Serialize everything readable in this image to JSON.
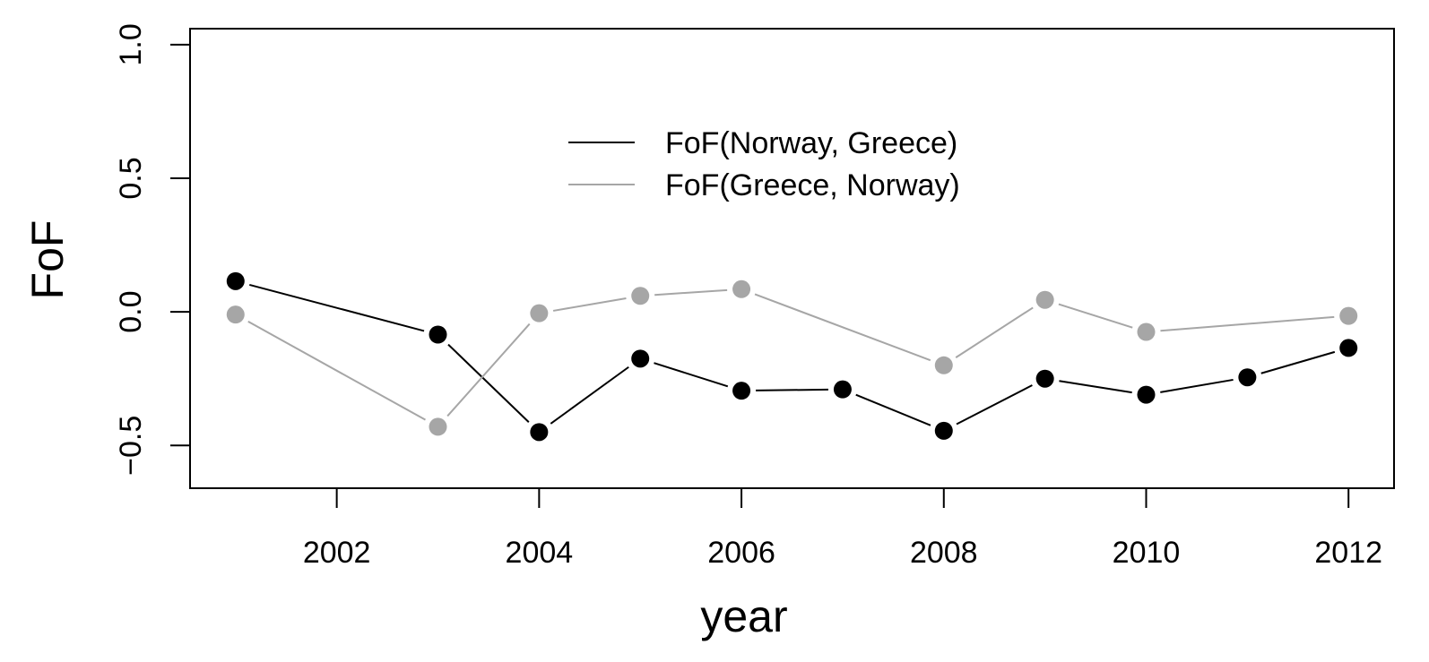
{
  "chart_data": {
    "type": "line",
    "xlabel": "year",
    "ylabel": "FoF",
    "xlim": [
      2000.55,
      2012.45
    ],
    "ylim": [
      -0.66,
      1.06
    ],
    "xticks": [
      2002,
      2004,
      2006,
      2008,
      2010,
      2012
    ],
    "xtick_labels": [
      "2002",
      "2004",
      "2006",
      "2008",
      "2010",
      "2012"
    ],
    "yticks": [
      -0.5,
      0.0,
      0.5,
      1.0
    ],
    "ytick_labels": [
      "−0.5",
      "0.0",
      "0.5",
      "1.0"
    ],
    "grid": false,
    "legend_position": "top-center",
    "series": [
      {
        "name": "FoF(Norway, Greece)",
        "color": "#000000",
        "x": [
          2001,
          2003,
          2004,
          2005,
          2006,
          2007,
          2008,
          2009,
          2010,
          2011,
          2012
        ],
        "y": [
          0.115,
          -0.085,
          -0.45,
          -0.175,
          -0.295,
          -0.29,
          -0.445,
          -0.25,
          -0.31,
          -0.245,
          -0.135
        ]
      },
      {
        "name": "FoF(Greece, Norway)",
        "color": "#a6a6a6",
        "x": [
          2001,
          2003,
          2004,
          2005,
          2006,
          2008,
          2009,
          2010,
          2012
        ],
        "y": [
          -0.01,
          -0.43,
          -0.005,
          0.06,
          0.085,
          -0.2,
          0.045,
          -0.075,
          -0.015
        ]
      }
    ]
  }
}
